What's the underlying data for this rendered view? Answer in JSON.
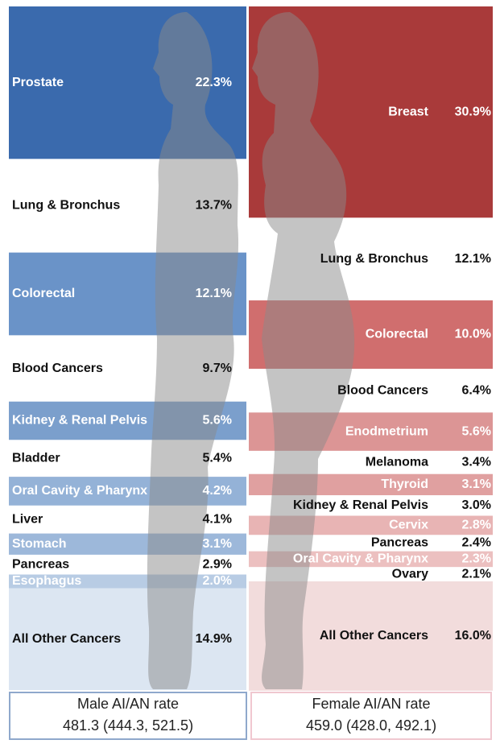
{
  "chart_data": [
    {
      "type": "stack",
      "categories": [
        "Prostate",
        "Lung & Bronchus",
        "Colorectal",
        "Blood Cancers",
        "Kidney & Renal Pelvis",
        "Bladder",
        "Oral Cavity & Pharynx",
        "Liver",
        "Stomach",
        "Pancreas",
        "Esophagus",
        "All Other Cancers"
      ],
      "values": [
        22.3,
        13.7,
        12.1,
        9.7,
        5.6,
        5.4,
        4.2,
        4.1,
        3.1,
        2.9,
        2.0,
        14.9
      ],
      "value_labels": [
        "22.3%",
        "13.7%",
        "12.1%",
        "9.7%",
        "5.6%",
        "5.4%",
        "4.2%",
        "4.1%",
        "3.1%",
        "2.9%",
        "2.0%",
        "14.9%"
      ],
      "colors": [
        "#3a6aad",
        null,
        "#6a93c8",
        null,
        "#7b9fcc",
        null,
        "#94b2d7",
        null,
        "#9db8da",
        null,
        "#b8cce4",
        "#dce6f2"
      ],
      "label_colors": [
        "#fff",
        "#111",
        "#fff",
        "#111",
        "#fff",
        "#111",
        "#fff",
        "#111",
        "#fff",
        "#111",
        "#fff",
        "#111"
      ],
      "rate_label": "Male AI/AN rate",
      "rate": "481.3 (444.3, 521.5)"
    },
    {
      "type": "stack",
      "categories": [
        "Breast",
        "Lung & Bronchus",
        "Colorectal",
        "Blood Cancers",
        "Enodmetrium",
        "Melanoma",
        "Thyroid",
        "Kidney & Renal Pelvis",
        "Cervix",
        "Pancreas",
        "Oral Cavity & Pharynx",
        "Ovary",
        "All Other  Cancers"
      ],
      "values": [
        30.9,
        12.1,
        10.0,
        6.4,
        5.6,
        3.4,
        3.1,
        3.0,
        2.8,
        2.4,
        2.3,
        2.1,
        16.0
      ],
      "value_labels": [
        "30.9%",
        "12.1%",
        "10.0%",
        "6.4%",
        "5.6%",
        "3.4%",
        "3.1%",
        "3.0%",
        "2.8%",
        "2.4%",
        "2.3%",
        "2.1%",
        "16.0%"
      ],
      "colors": [
        "#a93a3a",
        null,
        "#d06e6e",
        null,
        "#dc9595",
        null,
        "#e0a0a0",
        null,
        "#e8b4b4",
        null,
        "#ecc0c0",
        null,
        "#f2dcdc"
      ],
      "label_colors": [
        "#fff",
        "#111",
        "#fff",
        "#111",
        "#fff",
        "#111",
        "#fff",
        "#111",
        "#fff",
        "#111",
        "#fff",
        "#111",
        "#111"
      ],
      "rate_label": "Female AI/AN rate",
      "rate": "459.0 (428.0, 492.1)"
    }
  ]
}
